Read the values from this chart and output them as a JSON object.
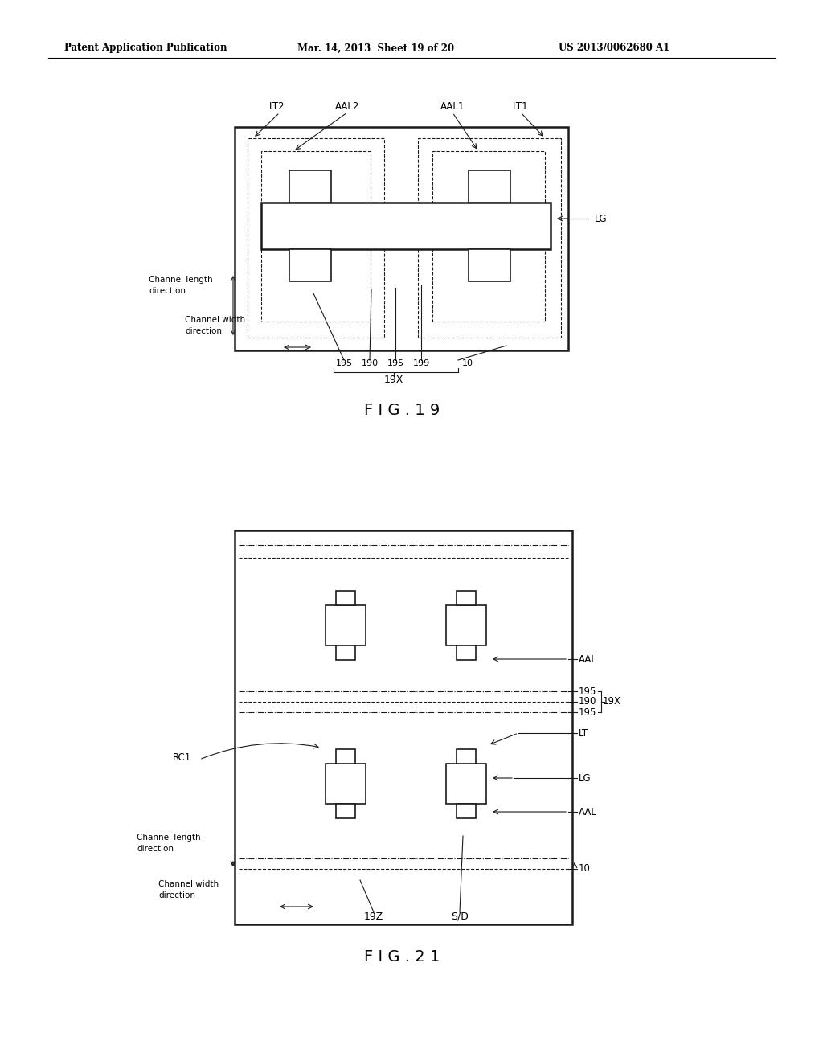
{
  "bg_color": "#ffffff",
  "header_left": "Patent Application Publication",
  "header_mid": "Mar. 14, 2013  Sheet 19 of 20",
  "header_right": "US 2013/0062680 A1",
  "fig19_title": "F I G . 1 9",
  "fig21_title": "F I G . 2 1",
  "line_color": "#1a1a1a"
}
